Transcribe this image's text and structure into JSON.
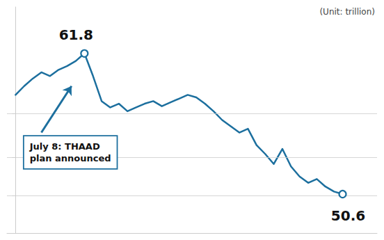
{
  "chart_data": {
    "type": "line",
    "ylabel": "(Unit: trillion)",
    "x": [
      0,
      1,
      2,
      3,
      4,
      5,
      6,
      7,
      8,
      9,
      10,
      11,
      12,
      13,
      14,
      15,
      16,
      17,
      18,
      19,
      20,
      21,
      22,
      23,
      24,
      25,
      26,
      27,
      28,
      29,
      30,
      31,
      32,
      33,
      34,
      35,
      36,
      37,
      38
    ],
    "values": [
      58.5,
      59.2,
      59.8,
      60.3,
      60.0,
      60.5,
      60.8,
      61.2,
      61.8,
      60.0,
      58.0,
      57.5,
      57.8,
      57.2,
      57.5,
      57.8,
      58.0,
      57.6,
      57.9,
      58.2,
      58.5,
      58.3,
      57.8,
      57.2,
      56.5,
      56.0,
      55.5,
      55.8,
      54.5,
      53.8,
      53.0,
      54.2,
      52.8,
      52.0,
      51.5,
      51.8,
      51.2,
      50.8,
      50.6
    ],
    "color": "#1c6f9e",
    "xlim": [
      -1,
      42
    ],
    "ylim": [
      47.5,
      65.5
    ],
    "yticks": [
      50.5,
      53.5,
      57.0
    ],
    "grid": true,
    "tick_labels": false,
    "annotations": [
      {
        "text": "61.8",
        "x": 8,
        "y": 61.8,
        "marker": "circle"
      },
      {
        "text": "50.6",
        "x": 38,
        "y": 50.6,
        "marker": "circle"
      },
      {
        "text": "July 8: THAAD\nplan announced",
        "x": 6.5,
        "y": 59.2
      }
    ]
  }
}
